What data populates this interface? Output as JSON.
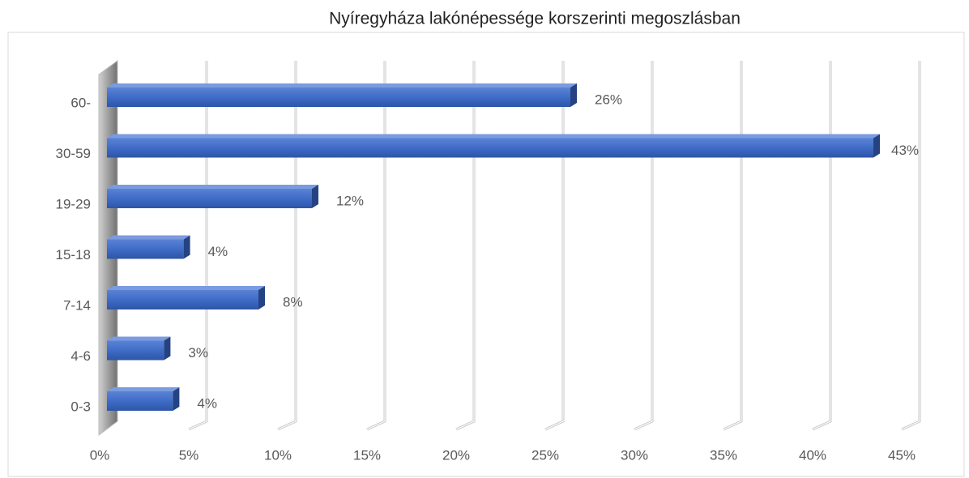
{
  "chart_data": {
    "type": "bar3d",
    "title": "Nyíregyháza lakónépessége korszerinti megoszlásban",
    "categories": [
      "0-3",
      "4-6",
      "7-14",
      "15-18",
      "19-29",
      "30-59",
      "60-"
    ],
    "values": [
      3.7,
      3.2,
      8.5,
      4.3,
      11.5,
      43,
      26
    ],
    "value_labels": [
      "4%",
      "3%",
      "8%",
      "4%",
      "12%",
      "43%",
      "26%"
    ],
    "color": "#4472c4",
    "xlim": [
      0,
      45
    ],
    "xticks": [
      {
        "value": 0,
        "label": "0%"
      },
      {
        "value": 5,
        "label": "5%"
      },
      {
        "value": 10,
        "label": "10%"
      },
      {
        "value": 15,
        "label": "15%"
      },
      {
        "value": 20,
        "label": "20%"
      },
      {
        "value": 25,
        "label": "25%"
      },
      {
        "value": 30,
        "label": "30%"
      },
      {
        "value": 35,
        "label": "35%"
      },
      {
        "value": 40,
        "label": "40%"
      },
      {
        "value": 45,
        "label": "45%"
      }
    ],
    "grid": true
  }
}
